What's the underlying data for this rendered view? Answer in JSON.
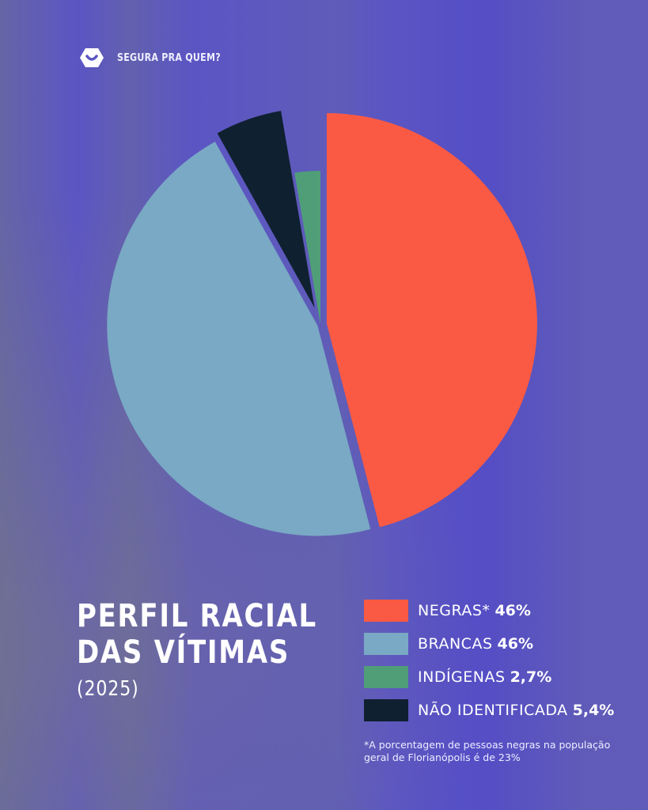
{
  "brand": {
    "name": "SEGURA PRA QUEM?",
    "icon": "shield-hex-logo-icon"
  },
  "chart_data": {
    "type": "pie",
    "title": "PERFIL RACIAL DAS VÍTIMAS",
    "subtitle": "(2025)",
    "legend_position": "bottom-right",
    "slices": [
      {
        "label": "NEGRAS*",
        "value": 46,
        "display": "46%",
        "color": "#fa5a43"
      },
      {
        "label": "BRANCAS",
        "value": 46,
        "display": "46%",
        "color": "#79a9c4"
      },
      {
        "label": "NÃO IDENTIFICADA",
        "value": 5.4,
        "display": "5,4%",
        "color": "#0f2030"
      },
      {
        "label": "INDÍGENAS",
        "value": 2.7,
        "display": "2,7%",
        "color": "#4f9e78"
      }
    ],
    "legend_order": [
      0,
      1,
      3,
      2
    ]
  },
  "title_lines": [
    "PERFIL RACIAL",
    "DAS VÍTIMAS"
  ],
  "footnote": "*A porcentagem de pessoas negras na população geral de Florianópolis é de 23%"
}
